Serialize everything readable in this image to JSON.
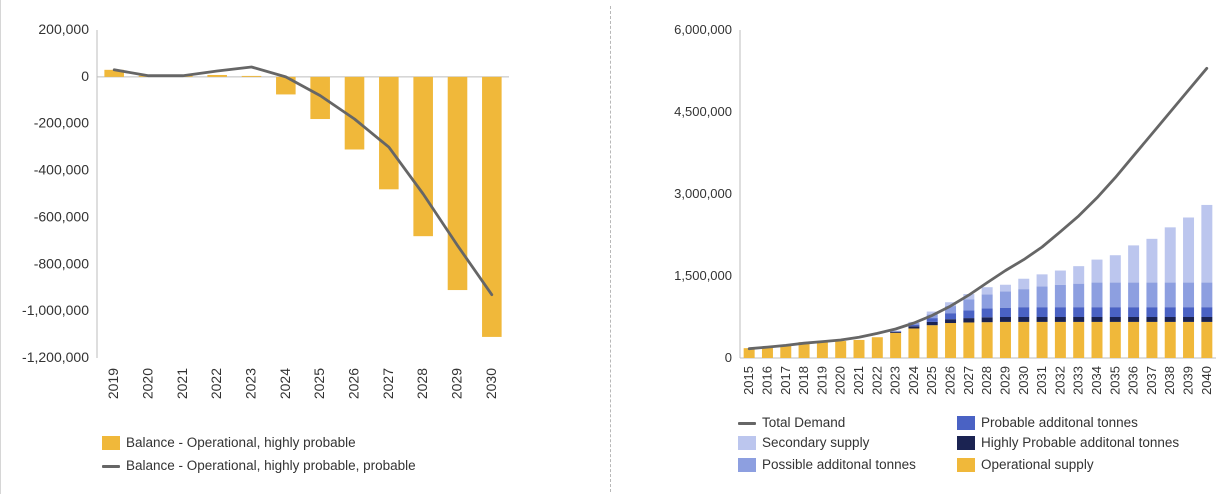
{
  "chart_data": [
    {
      "type": "bar",
      "categories": [
        "2019",
        "2020",
        "2021",
        "2022",
        "2023",
        "2024",
        "2025",
        "2026",
        "2027",
        "2028",
        "2029",
        "2030"
      ],
      "series": [
        {
          "name": "Balance - Operational, highly probable",
          "kind": "bar",
          "color": "#F0B83A",
          "values": [
            30000,
            5000,
            5000,
            8000,
            4000,
            -75000,
            -180000,
            -310000,
            -480000,
            -680000,
            -910000,
            -1110000
          ]
        },
        {
          "name": "Balance - Operational, highly probable, probable",
          "kind": "line",
          "color": "#666666",
          "values": [
            30000,
            5000,
            5000,
            25000,
            42000,
            0,
            -80000,
            -180000,
            -300000,
            -500000,
            -720000,
            -930000
          ]
        }
      ],
      "ylim": [
        -1200000,
        200000
      ],
      "yticks": [
        200000,
        0,
        -200000,
        -400000,
        -600000,
        -800000,
        -1000000,
        -1200000
      ],
      "ytick_labels": [
        "200,000",
        "0",
        "-200,000",
        "-400,000",
        "-600,000",
        "-800,000",
        "-1,000,000",
        "-1,200,000"
      ],
      "legend_position": "bottom-left",
      "grid": false
    },
    {
      "type": "bar",
      "stacked": true,
      "categories": [
        "2015",
        "2016",
        "2017",
        "2018",
        "2019",
        "2020",
        "2021",
        "2022",
        "2023",
        "2024",
        "2025",
        "2026",
        "2027",
        "2028",
        "2029",
        "2030",
        "2031",
        "2032",
        "2033",
        "2034",
        "2035",
        "2036",
        "2037",
        "2038",
        "2039",
        "2040"
      ],
      "series": [
        {
          "name": "Operational supply",
          "kind": "bar",
          "color": "#F0B83A",
          "values": [
            180000,
            200000,
            230000,
            290000,
            300000,
            310000,
            330000,
            380000,
            460000,
            540000,
            600000,
            640000,
            650000,
            655000,
            660000,
            660000,
            660000,
            660000,
            660000,
            660000,
            660000,
            660000,
            660000,
            660000,
            660000,
            660000
          ]
        },
        {
          "name": "Highly Probable additonal tonnes",
          "kind": "bar",
          "color": "#1B2352",
          "values": [
            0,
            0,
            0,
            0,
            0,
            0,
            0,
            0,
            20000,
            40000,
            60000,
            70000,
            80000,
            90000,
            90000,
            90000,
            90000,
            90000,
            90000,
            90000,
            90000,
            90000,
            90000,
            90000,
            90000,
            90000
          ]
        },
        {
          "name": "Probable additonal tonnes",
          "kind": "bar",
          "color": "#4A62C4",
          "values": [
            0,
            0,
            0,
            0,
            0,
            0,
            0,
            0,
            10000,
            30000,
            70000,
            110000,
            140000,
            160000,
            170000,
            180000,
            180000,
            180000,
            180000,
            180000,
            180000,
            180000,
            180000,
            180000,
            180000,
            180000
          ]
        },
        {
          "name": "Possible additonal tonnes",
          "kind": "bar",
          "color": "#8D9FE0",
          "values": [
            0,
            0,
            0,
            0,
            0,
            0,
            0,
            0,
            0,
            30000,
            70000,
            130000,
            200000,
            260000,
            300000,
            330000,
            380000,
            410000,
            430000,
            450000,
            450000,
            450000,
            450000,
            450000,
            450000,
            450000
          ]
        },
        {
          "name": "Secondary supply",
          "kind": "bar",
          "color": "#BCC6EE",
          "values": [
            0,
            0,
            0,
            0,
            0,
            0,
            0,
            0,
            10000,
            20000,
            50000,
            70000,
            100000,
            130000,
            120000,
            190000,
            220000,
            260000,
            320000,
            420000,
            500000,
            680000,
            800000,
            1010000,
            1190000,
            1420000
          ]
        },
        {
          "name": "Total Demand",
          "kind": "line",
          "color": "#666666",
          "values": [
            170000,
            200000,
            230000,
            270000,
            300000,
            330000,
            380000,
            450000,
            530000,
            640000,
            780000,
            950000,
            1150000,
            1380000,
            1600000,
            1800000,
            2030000,
            2310000,
            2600000,
            2930000,
            3300000,
            3700000,
            4100000,
            4500000,
            4900000,
            5300000
          ]
        }
      ],
      "ylim": [
        0,
        6000000
      ],
      "yticks": [
        0,
        1500000,
        3000000,
        4500000,
        6000000
      ],
      "ytick_labels": [
        "0",
        "1,500,000",
        "3,000,000",
        "4,500,000",
        "6,000,000"
      ],
      "legend_position": "bottom",
      "grid": false
    }
  ],
  "left_legend": [
    {
      "label": "Balance - Operational, highly probable",
      "kind": "bar",
      "color": "#F0B83A"
    },
    {
      "label": "Balance - Operational, highly probable, probable",
      "kind": "line",
      "color": "#666666"
    }
  ],
  "right_legend": [
    {
      "label": "Total Demand",
      "kind": "line",
      "color": "#666666"
    },
    {
      "label": "Probable additonal tonnes",
      "kind": "bar",
      "color": "#4A62C4"
    },
    {
      "label": "Secondary supply",
      "kind": "bar",
      "color": "#BCC6EE"
    },
    {
      "label": "Highly Probable additonal tonnes",
      "kind": "bar",
      "color": "#1B2352"
    },
    {
      "label": "Possible additonal tonnes",
      "kind": "bar",
      "color": "#8D9FE0"
    },
    {
      "label": "Operational supply",
      "kind": "bar",
      "color": "#F0B83A"
    }
  ]
}
